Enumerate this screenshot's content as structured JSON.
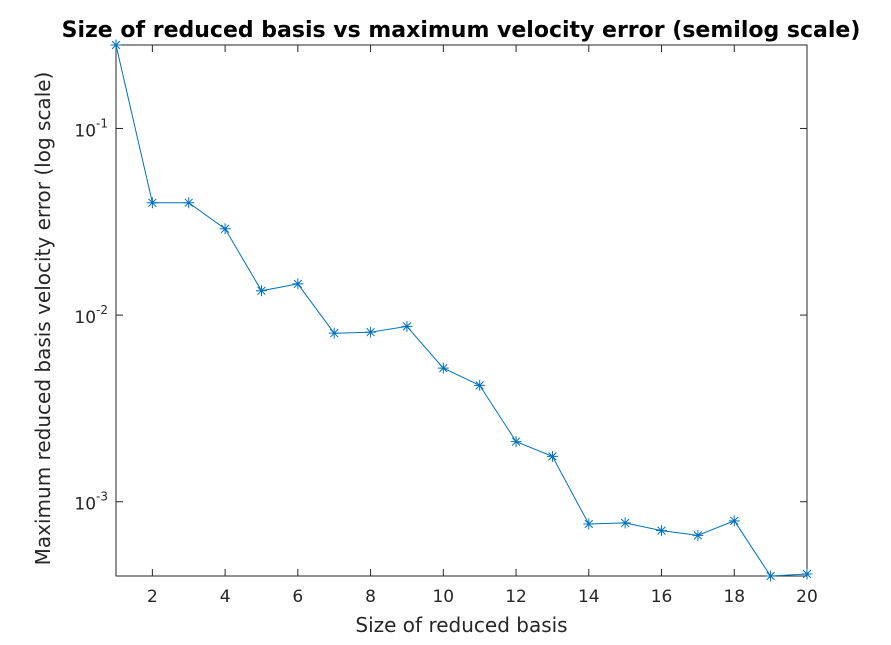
{
  "chart_data": {
    "type": "line",
    "title": "Size of reduced basis vs maximum velocity error (semilog scale)",
    "xlabel": "Size of reduced basis",
    "ylabel": "Maximum reduced basis velocity error (log scale)",
    "xlim": [
      1,
      20
    ],
    "ylim": [
      0.0004,
      0.28
    ],
    "yscale": "log",
    "x_ticks": [
      2,
      4,
      6,
      8,
      10,
      12,
      14,
      16,
      18,
      20
    ],
    "y_ticks": [
      {
        "value": 0.001,
        "base": "10",
        "exp": "-3"
      },
      {
        "value": 0.01,
        "base": "10",
        "exp": "-2"
      },
      {
        "value": 0.1,
        "base": "10",
        "exp": "-1"
      }
    ],
    "grid": false,
    "marker": "asterisk",
    "color": "#0072bd",
    "x": [
      1,
      2,
      3,
      4,
      5,
      6,
      7,
      8,
      9,
      10,
      11,
      12,
      13,
      14,
      15,
      16,
      17,
      18,
      19,
      20
    ],
    "y": [
      0.28,
      0.04,
      0.04,
      0.029,
      0.0135,
      0.0147,
      0.008,
      0.0081,
      0.0087,
      0.0052,
      0.0042,
      0.0021,
      0.00175,
      0.00076,
      0.00077,
      0.0007,
      0.00066,
      0.00079,
      0.0004,
      0.00041
    ]
  }
}
